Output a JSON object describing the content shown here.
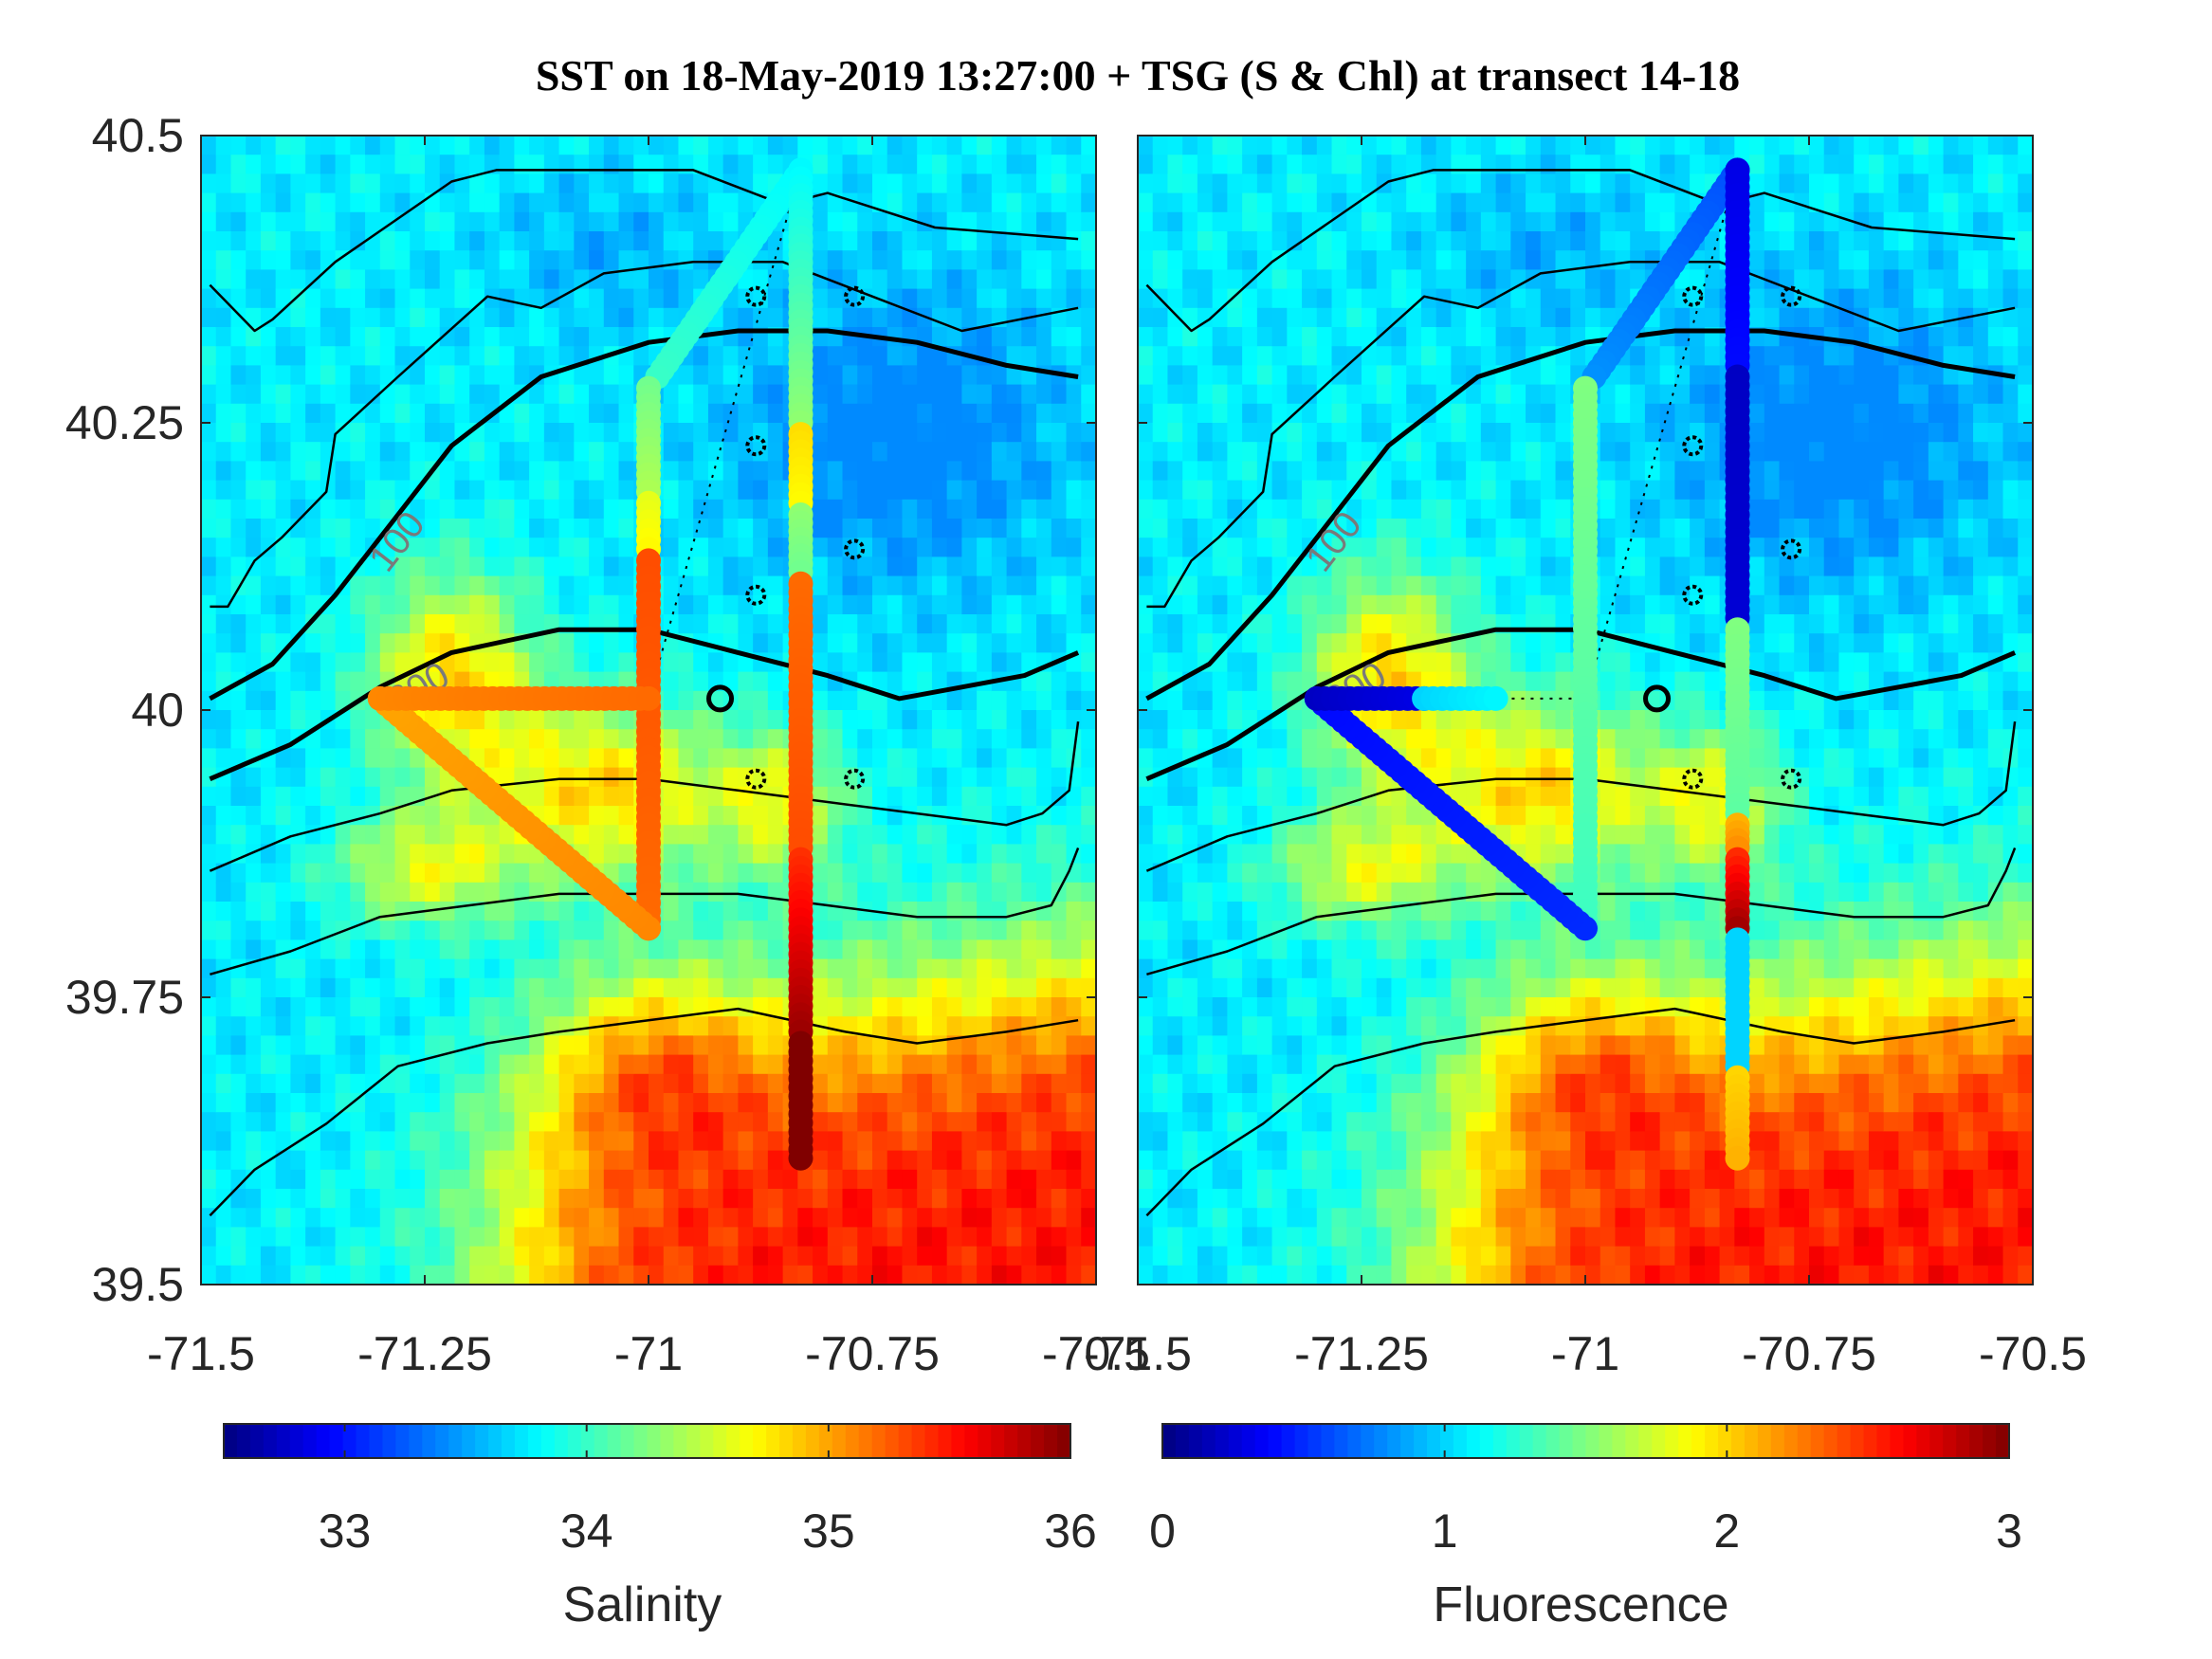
{
  "chart_data": [
    {
      "type": "heatmap",
      "title": "SST on 18-May-2019 13:27:00 + TSG (S & Chl) at transect 14-18",
      "xlim": [
        -71.5,
        -70.5
      ],
      "ylim": [
        39.5,
        40.5
      ],
      "xticks": [
        "-71.5",
        "-71.25",
        "-71",
        "-70.75",
        "-70.5"
      ],
      "yticks": [
        "40.5",
        "40.25",
        "40",
        "39.75",
        "39.5"
      ],
      "colormap": "jet",
      "isobath_labels": [
        "100",
        "300"
      ],
      "isobaths": [
        {
          "width": 2.5,
          "points": [
            [
              -71.49,
              40.37
            ],
            [
              -71.44,
              40.33
            ],
            [
              -71.42,
              40.34
            ],
            [
              -71.35,
              40.39
            ],
            [
              -71.22,
              40.46
            ],
            [
              -71.17,
              40.47
            ],
            [
              -71.0,
              40.47
            ],
            [
              -70.95,
              40.47
            ],
            [
              -70.85,
              40.44
            ],
            [
              -70.8,
              40.45
            ],
            [
              -70.68,
              40.42
            ],
            [
              -70.52,
              40.41
            ]
          ]
        },
        {
          "width": 2.5,
          "points": [
            [
              -71.49,
              40.09
            ],
            [
              -71.47,
              40.09
            ],
            [
              -71.44,
              40.13
            ],
            [
              -71.41,
              40.15
            ],
            [
              -71.36,
              40.19
            ],
            [
              -71.35,
              40.24
            ],
            [
              -71.28,
              40.29
            ],
            [
              -71.18,
              40.36
            ],
            [
              -71.12,
              40.35
            ],
            [
              -71.05,
              40.38
            ],
            [
              -70.95,
              40.39
            ],
            [
              -70.85,
              40.39
            ],
            [
              -70.75,
              40.36
            ],
            [
              -70.65,
              40.33
            ],
            [
              -70.52,
              40.35
            ]
          ]
        },
        {
          "width": 5,
          "points": [
            [
              -71.49,
              40.01
            ],
            [
              -71.42,
              40.04
            ],
            [
              -71.35,
              40.1
            ],
            [
              -71.28,
              40.17
            ],
            [
              -71.22,
              40.23
            ],
            [
              -71.12,
              40.29
            ],
            [
              -71.0,
              40.32
            ],
            [
              -70.9,
              40.33
            ],
            [
              -70.8,
              40.33
            ],
            [
              -70.7,
              40.32
            ],
            [
              -70.6,
              40.3
            ],
            [
              -70.52,
              40.29
            ]
          ]
        },
        {
          "width": 5,
          "points": [
            [
              -71.49,
              39.94
            ],
            [
              -71.4,
              39.97
            ],
            [
              -71.3,
              40.02
            ],
            [
              -71.22,
              40.05
            ],
            [
              -71.1,
              40.07
            ],
            [
              -71.0,
              40.07
            ],
            [
              -70.9,
              40.05
            ],
            [
              -70.8,
              40.03
            ],
            [
              -70.72,
              40.01
            ],
            [
              -70.65,
              40.02
            ],
            [
              -70.58,
              40.03
            ],
            [
              -70.52,
              40.05
            ]
          ]
        },
        {
          "width": 2.5,
          "points": [
            [
              -71.49,
              39.86
            ],
            [
              -71.4,
              39.89
            ],
            [
              -71.3,
              39.91
            ],
            [
              -71.22,
              39.93
            ],
            [
              -71.1,
              39.94
            ],
            [
              -71.0,
              39.94
            ],
            [
              -70.9,
              39.93
            ],
            [
              -70.8,
              39.92
            ],
            [
              -70.7,
              39.91
            ],
            [
              -70.6,
              39.9
            ],
            [
              -70.56,
              39.91
            ],
            [
              -70.53,
              39.93
            ],
            [
              -70.52,
              39.99
            ]
          ]
        },
        {
          "width": 2.5,
          "points": [
            [
              -71.49,
              39.77
            ],
            [
              -71.4,
              39.79
            ],
            [
              -71.3,
              39.82
            ],
            [
              -71.2,
              39.83
            ],
            [
              -71.1,
              39.84
            ],
            [
              -71.0,
              39.84
            ],
            [
              -70.9,
              39.84
            ],
            [
              -70.8,
              39.83
            ],
            [
              -70.7,
              39.82
            ],
            [
              -70.6,
              39.82
            ],
            [
              -70.55,
              39.83
            ],
            [
              -70.53,
              39.86
            ],
            [
              -70.52,
              39.88
            ]
          ]
        },
        {
          "width": 2.5,
          "points": [
            [
              -71.49,
              39.56
            ],
            [
              -71.44,
              39.6
            ],
            [
              -71.36,
              39.64
            ],
            [
              -71.28,
              39.69
            ],
            [
              -71.18,
              39.71
            ],
            [
              -71.1,
              39.72
            ],
            [
              -71.0,
              39.73
            ],
            [
              -70.9,
              39.74
            ],
            [
              -70.78,
              39.72
            ],
            [
              -70.7,
              39.71
            ],
            [
              -70.6,
              39.72
            ],
            [
              -70.52,
              39.73
            ]
          ]
        }
      ],
      "track": {
        "points": [
          [
            -70.83,
            40.47
          ],
          [
            -70.85,
            40.45
          ],
          [
            -70.9,
            40.39
          ],
          [
            -70.95,
            40.35
          ],
          [
            -70.99,
            40.3
          ],
          [
            -71.0,
            40.27
          ],
          [
            -71.0,
            39.81
          ],
          [
            -71.3,
            40.01
          ],
          [
            -71.1,
            40.01
          ],
          [
            -71.0,
            40.01
          ],
          [
            -70.83,
            40.47
          ],
          [
            -70.83,
            39.61
          ]
        ]
      },
      "stations": [
        [
          -70.88,
          40.36
        ],
        [
          -70.77,
          40.36
        ],
        [
          -70.88,
          40.23
        ],
        [
          -70.77,
          40.14
        ],
        [
          -70.88,
          40.1
        ],
        [
          -70.88,
          39.94
        ],
        [
          -70.77,
          39.94
        ]
      ],
      "home_station": [
        -70.92,
        40.01
      ],
      "panels": [
        {
          "name": "salinity",
          "colorbar_label": "Salinity",
          "clim": [
            32.5,
            36
          ],
          "cbticks": [
            "33",
            "34",
            "35",
            "36"
          ],
          "segments": [
            {
              "from": [
                -70.83,
                40.47
              ],
              "to": [
                -70.99,
                40.29
              ],
              "values": [
                33.8,
                34.0
              ]
            },
            {
              "from": [
                -71.0,
                40.28
              ],
              "to": [
                -71.0,
                40.19
              ],
              "values": [
                34.2,
                34.4
              ]
            },
            {
              "from": [
                -71.0,
                40.18
              ],
              "to": [
                -71.0,
                40.14
              ],
              "values": [
                34.6,
                34.7
              ]
            },
            {
              "from": [
                -71.0,
                40.13
              ],
              "to": [
                -71.0,
                39.81
              ],
              "values": [
                35.3,
                35.2
              ]
            },
            {
              "from": [
                -71.0,
                39.81
              ],
              "to": [
                -71.3,
                40.01
              ],
              "values": [
                35.1,
                35.0
              ]
            },
            {
              "from": [
                -71.3,
                40.01
              ],
              "to": [
                -71.0,
                40.01
              ],
              "values": [
                35.1,
                35.2
              ]
            },
            {
              "from": [
                -70.83,
                40.47
              ],
              "to": [
                -70.83,
                40.25
              ],
              "values": [
                33.8,
                34.3
              ]
            },
            {
              "from": [
                -70.83,
                40.24
              ],
              "to": [
                -70.83,
                40.18
              ],
              "values": [
                34.8,
                34.7
              ]
            },
            {
              "from": [
                -70.83,
                40.17
              ],
              "to": [
                -70.83,
                40.12
              ],
              "values": [
                34.3,
                34.2
              ]
            },
            {
              "from": [
                -70.83,
                40.11
              ],
              "to": [
                -70.83,
                39.88
              ],
              "values": [
                35.2,
                35.3
              ]
            },
            {
              "from": [
                -70.83,
                39.87
              ],
              "to": [
                -70.83,
                39.72
              ],
              "values": [
                35.4,
                35.9
              ]
            },
            {
              "from": [
                -70.83,
                39.71
              ],
              "to": [
                -70.83,
                39.61
              ],
              "values": [
                36.0,
                36.2
              ]
            }
          ]
        },
        {
          "name": "fluorescence",
          "colorbar_label": "Fluorescence",
          "clim": [
            0,
            3
          ],
          "cbticks": [
            "0",
            "1",
            "2",
            "3"
          ],
          "segments": [
            {
              "from": [
                -70.83,
                40.47
              ],
              "to": [
                -70.99,
                40.29
              ],
              "values": [
                0.6,
                0.8
              ]
            },
            {
              "from": [
                -71.0,
                40.28
              ],
              "to": [
                -71.0,
                39.81
              ],
              "values": [
                1.5,
                1.3
              ]
            },
            {
              "from": [
                -71.0,
                39.81
              ],
              "to": [
                -71.3,
                40.01
              ],
              "values": [
                0.5,
                0.4
              ]
            },
            {
              "from": [
                -71.3,
                40.01
              ],
              "to": [
                -71.18,
                40.01
              ],
              "values": [
                0.2,
                0.3
              ]
            },
            {
              "from": [
                -71.18,
                40.01
              ],
              "to": [
                -71.1,
                40.01
              ],
              "values": [
                1.0,
                1.1
              ]
            },
            {
              "from": [
                -70.83,
                40.47
              ],
              "to": [
                -70.83,
                40.3
              ],
              "values": [
                0.3,
                0.4
              ]
            },
            {
              "from": [
                -70.83,
                40.29
              ],
              "to": [
                -70.83,
                40.08
              ],
              "values": [
                0.2,
                0.25
              ]
            },
            {
              "from": [
                -70.83,
                40.07
              ],
              "to": [
                -70.83,
                39.91
              ],
              "values": [
                1.5,
                1.4
              ]
            },
            {
              "from": [
                -70.83,
                39.9
              ],
              "to": [
                -70.83,
                39.88
              ],
              "values": [
                2.1,
                2.2
              ]
            },
            {
              "from": [
                -70.83,
                39.87
              ],
              "to": [
                -70.83,
                39.81
              ],
              "values": [
                2.5,
                2.9
              ]
            },
            {
              "from": [
                -70.83,
                39.8
              ],
              "to": [
                -70.83,
                39.69
              ],
              "values": [
                1.0,
                1.0
              ]
            },
            {
              "from": [
                -70.83,
                39.68
              ],
              "to": [
                -70.83,
                39.61
              ],
              "values": [
                2.0,
                2.1
              ]
            }
          ]
        }
      ]
    }
  ]
}
